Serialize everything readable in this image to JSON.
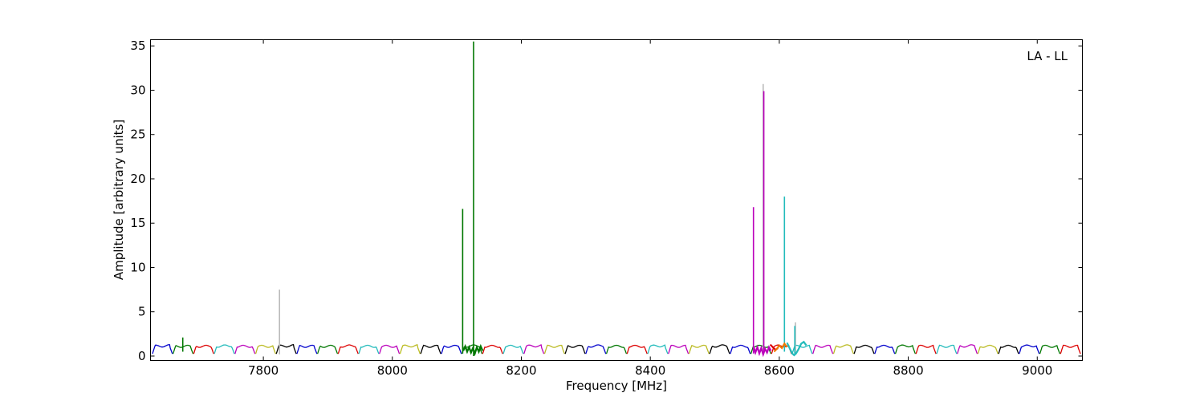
{
  "chart_data": {
    "type": "line",
    "title": "",
    "annotation": "LA - LL",
    "xlabel": "Frequency [MHz]",
    "ylabel": "Amplitude [arbitrary units]",
    "xlim": [
      7625,
      9070
    ],
    "ylim": [
      -0.5,
      35.7
    ],
    "xticks": [
      7800,
      8000,
      8200,
      8400,
      8600,
      8800,
      9000
    ],
    "yticks": [
      0,
      5,
      10,
      15,
      20,
      25,
      30,
      35
    ],
    "grid": false,
    "legend": "none",
    "palette": [
      "#0000cc",
      "#007700",
      "#dd0000",
      "#22bbbb",
      "#bb00bb",
      "#bbbb22",
      "#000000"
    ],
    "spw_start": 7628,
    "spw_width": 32,
    "spw_count": 45,
    "spw_baseline": 1.1,
    "spw_dip": 0.25,
    "series": [
      {
        "color": "#bbbbbb",
        "x": [
          7825,
          7825
        ],
        "y": [
          0.2,
          7.5
        ]
      },
      {
        "color": "#007700",
        "x": [
          7675,
          7675
        ],
        "y": [
          0.5,
          2.1
        ]
      },
      {
        "color": "#007700",
        "x": [
          8109,
          8109
        ],
        "y": [
          0.3,
          16.6
        ]
      },
      {
        "color": "#007700",
        "x": [
          8126,
          8126
        ],
        "y": [
          0.0,
          35.5
        ]
      },
      {
        "color": "#007700",
        "x": [
          8110,
          8113,
          8116,
          8119,
          8122,
          8125,
          8128,
          8131,
          8134,
          8137,
          8140
        ],
        "y": [
          0.6,
          1.1,
          0.5,
          1.0,
          0.4,
          0.9,
          0.3,
          1.0,
          0.5,
          1.1,
          0.6
        ]
      },
      {
        "color": "#bb00bb",
        "x": [
          8560,
          8560
        ],
        "y": [
          0.3,
          16.8
        ]
      },
      {
        "color": "#bbbbbb",
        "x": [
          8575,
          8575
        ],
        "y": [
          0.3,
          30.7
        ]
      },
      {
        "color": "#bb00bb",
        "x": [
          8576,
          8576
        ],
        "y": [
          0.3,
          29.9
        ]
      },
      {
        "color": "#bb00bb",
        "x": [
          8560,
          8563,
          8566,
          8569,
          8572,
          8575,
          8578,
          8581,
          8584,
          8587
        ],
        "y": [
          1.1,
          0.4,
          1.0,
          0.3,
          0.9,
          0.2,
          0.8,
          0.4,
          1.0,
          0.6
        ]
      },
      {
        "color": "#22bbbb",
        "x": [
          8608,
          8608
        ],
        "y": [
          0.5,
          18.0
        ]
      },
      {
        "color": "#bbbbbb",
        "x": [
          8625,
          8625
        ],
        "y": [
          0.2,
          3.8
        ]
      },
      {
        "color": "#22bbbb",
        "x": [
          8624,
          8624
        ],
        "y": [
          0.2,
          3.4
        ]
      },
      {
        "color": "#22bbbb",
        "x": [
          8612,
          8616,
          8620,
          8623,
          8626,
          8630,
          8634,
          8638,
          8642
        ],
        "y": [
          1.5,
          0.9,
          0.3,
          0.1,
          0.3,
          0.8,
          1.4,
          1.6,
          1.2
        ]
      },
      {
        "color": "#dd0000",
        "x": [
          8586,
          8590,
          8594,
          8598
        ],
        "y": [
          1.3,
          1.0,
          0.7,
          0.9
        ]
      },
      {
        "color": "#ee7700",
        "x": [
          8592,
          8596,
          8600,
          8604,
          8608,
          8612
        ],
        "y": [
          0.5,
          0.8,
          1.2,
          0.9,
          1.4,
          1.0
        ]
      }
    ]
  }
}
